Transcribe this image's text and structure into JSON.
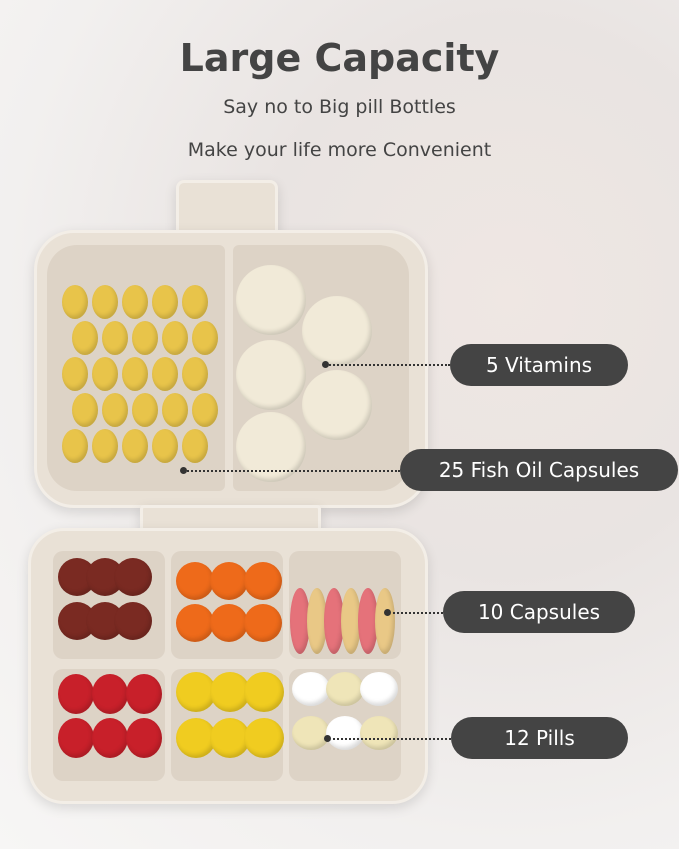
{
  "header": {
    "title": "Large Capacity",
    "subtitle1": "Say no to Big pill Bottles",
    "subtitle2": "Make your life more Convenient"
  },
  "labels": [
    {
      "text": "5 Vitamins"
    },
    {
      "text": "25 Fish Oil Capsules"
    },
    {
      "text": "10 Capsules"
    },
    {
      "text": "12 Pills"
    }
  ],
  "colors": {
    "label_bg": "#444444",
    "label_text": "#ffffff",
    "case": "#e9e1d6",
    "title": "#444444"
  }
}
